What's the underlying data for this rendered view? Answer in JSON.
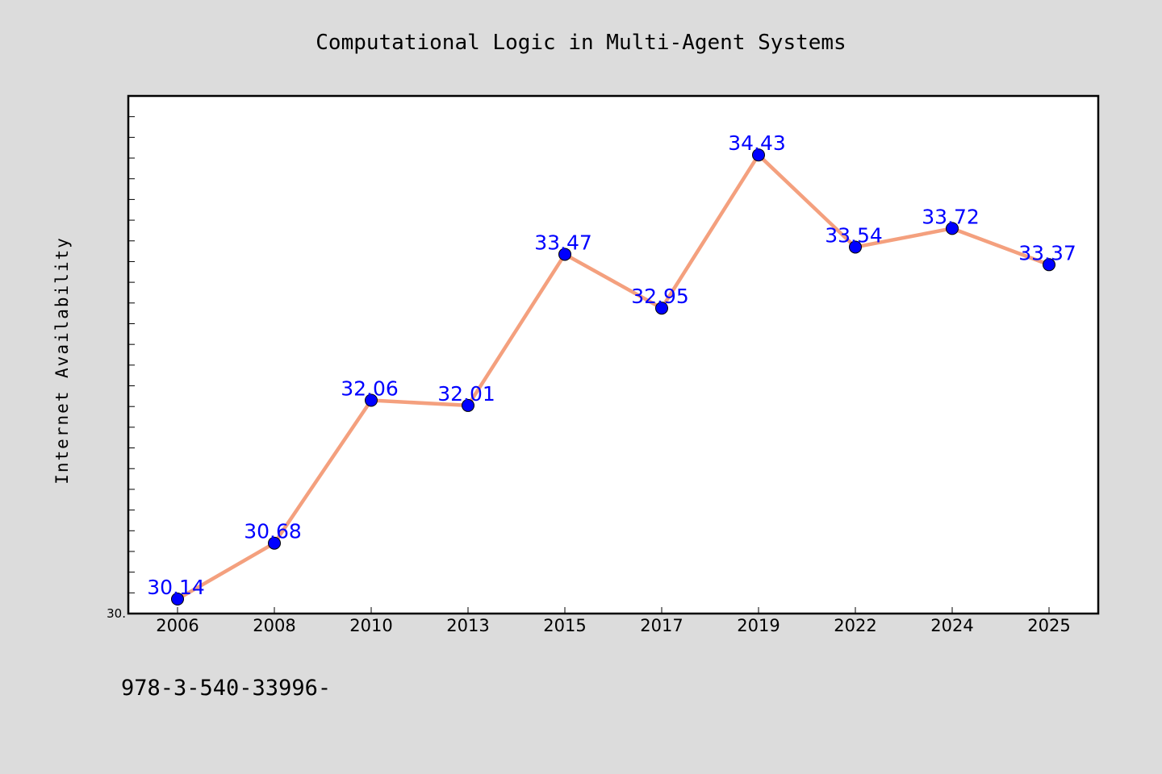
{
  "colors": {
    "page_background": "#dcdcdc",
    "plot_background": "#ffffff",
    "line": "#f4a07e",
    "marker": "#0000ff",
    "data_label": "#0000ff",
    "axis": "#000000"
  },
  "footer": {
    "text": "978-3-540-33996-"
  },
  "chart_data": {
    "type": "line",
    "title": "Computational Logic in Multi-Agent Systems",
    "xlabel": "",
    "ylabel": "Internet Availability",
    "categories": [
      "2006",
      "2008",
      "2010",
      "2013",
      "2015",
      "2017",
      "2019",
      "2022",
      "2024",
      "2025"
    ],
    "series": [
      {
        "values": [
          30.14,
          30.68,
          32.06,
          32.01,
          33.47,
          32.95,
          34.43,
          33.54,
          33.72,
          33.37
        ],
        "data_labels": [
          "30.14",
          "30.68",
          "32.06",
          "32.01",
          "33.47",
          "32.95",
          "34.43",
          "33.54",
          "33.72",
          "33.37"
        ]
      }
    ],
    "ylim": [
      30.0,
      35.0
    ],
    "ytick_labels": [
      "30."
    ],
    "grid": false,
    "legend": "none"
  }
}
